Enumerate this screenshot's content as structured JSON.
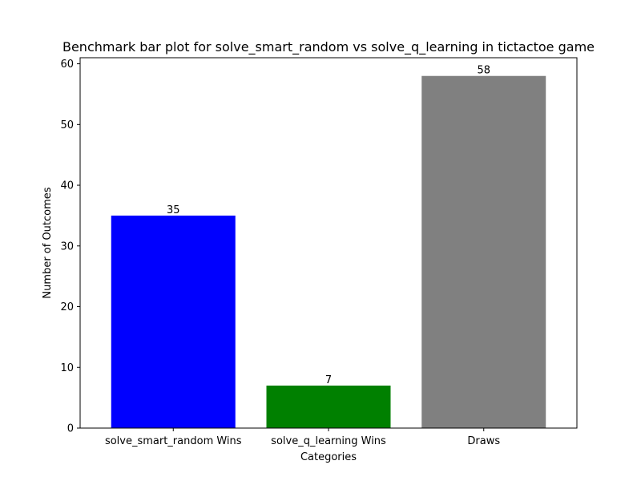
{
  "chart_data": {
    "type": "bar",
    "title": "Benchmark bar plot for solve_smart_random vs solve_q_learning in tictactoe game",
    "xlabel": "Categories",
    "ylabel": "Number of Outcomes",
    "categories": [
      "solve_smart_random Wins",
      "solve_q_learning Wins",
      "Draws"
    ],
    "values": [
      35,
      7,
      58
    ],
    "colors": [
      "#0000ff",
      "#008000",
      "#808080"
    ],
    "ylim": [
      0,
      61
    ],
    "yticks": [
      0,
      10,
      20,
      30,
      40,
      50,
      60
    ],
    "grid": false,
    "legend": "none"
  }
}
